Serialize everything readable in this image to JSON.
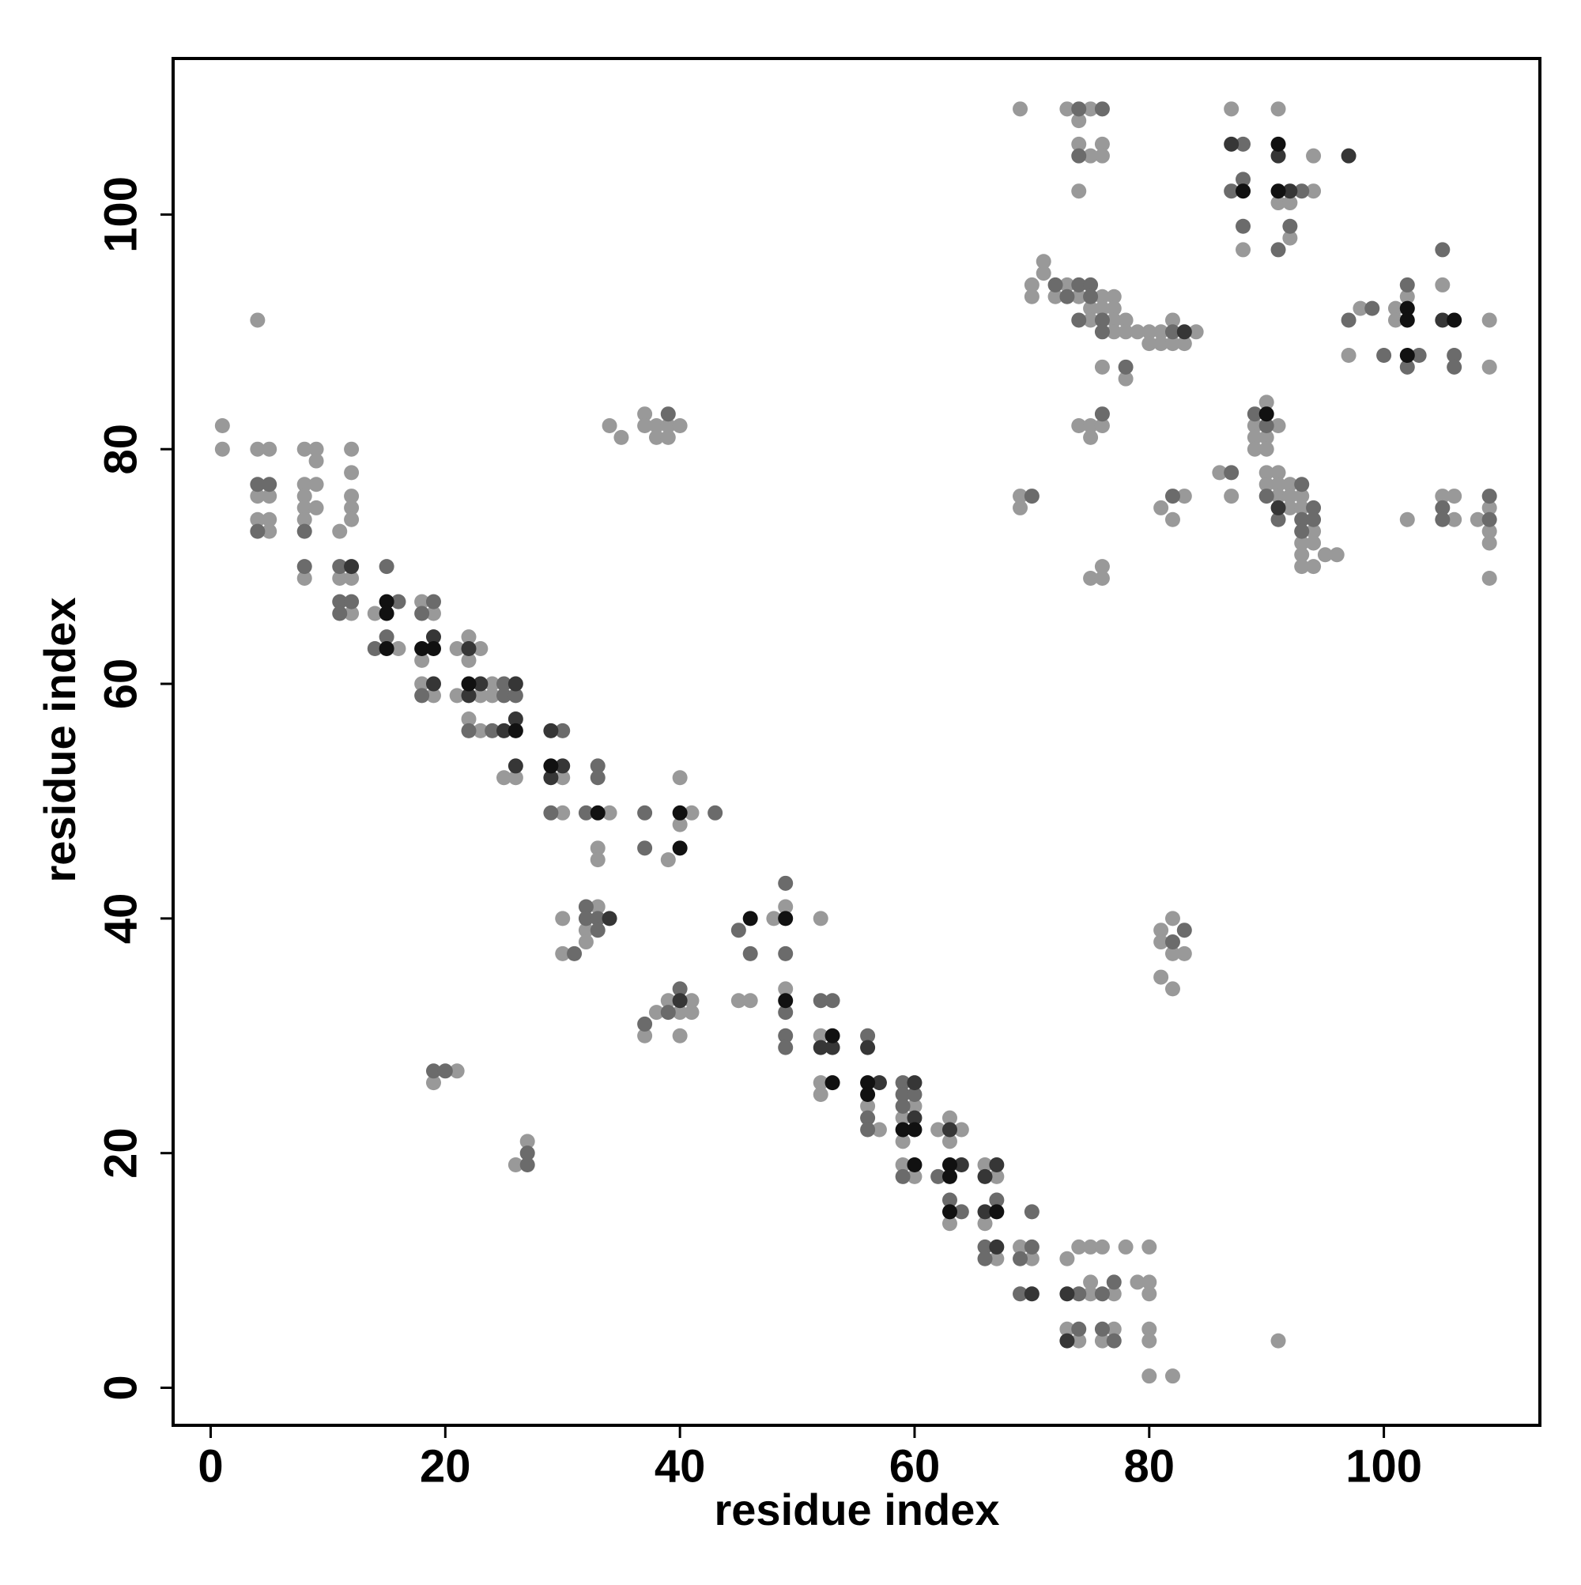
{
  "chart_data": {
    "type": "scatter",
    "xlabel": "residue index",
    "ylabel": "residue index",
    "xlim": [
      -3.2,
      113.3
    ],
    "ylim": [
      -3.2,
      113.3
    ],
    "xticks": [
      0,
      20,
      40,
      60,
      80,
      100
    ],
    "yticks": [
      0,
      20,
      40,
      60,
      80,
      100
    ],
    "grid": false,
    "series": [
      {
        "color": "#999999",
        "x": [
          1,
          1,
          4,
          4,
          5,
          4,
          5,
          4,
          5,
          5,
          8,
          8,
          8,
          8,
          8,
          8,
          9,
          9,
          9,
          9,
          11,
          11,
          12,
          12,
          12,
          12,
          12,
          12,
          12,
          14,
          16,
          18,
          19,
          18,
          18,
          19,
          21,
          23,
          22,
          22,
          21,
          23,
          24,
          24,
          22,
          23,
          25,
          26,
          30,
          30,
          34,
          33,
          33,
          39,
          40,
          40,
          41,
          30,
          30,
          33,
          32,
          32,
          34,
          35,
          37,
          37,
          38,
          38,
          39,
          39,
          40,
          21,
          19,
          26,
          27,
          37,
          38,
          39,
          40,
          41,
          41,
          40,
          45,
          46,
          48,
          49,
          49,
          52,
          52,
          52,
          52,
          56,
          57,
          60,
          59,
          59,
          59,
          60,
          62,
          63,
          64,
          63,
          63,
          66,
          67,
          66,
          67,
          69,
          70,
          73,
          74,
          75,
          76,
          75,
          75,
          77,
          73,
          74,
          77,
          76,
          78,
          80,
          79,
          80,
          80,
          80,
          80,
          80,
          82,
          91,
          81,
          82,
          81,
          82,
          83,
          81,
          82,
          69,
          73,
          75,
          74,
          74,
          76,
          75,
          76,
          74,
          87,
          91,
          94,
          94,
          91,
          92,
          92,
          88,
          70,
          71,
          71,
          73,
          70,
          72,
          74,
          76,
          77,
          75,
          76,
          77,
          75,
          77,
          78,
          77,
          78,
          79,
          80,
          81,
          84,
          80,
          81,
          82,
          83,
          82,
          76,
          78,
          98,
          101,
          101,
          102,
          105,
          97,
          109,
          109,
          74,
          75,
          75,
          76,
          69,
          69,
          83,
          81,
          82,
          86,
          87,
          90,
          89,
          91,
          89,
          90,
          89,
          90,
          90,
          91,
          90,
          91,
          92,
          91,
          92,
          93,
          92,
          93,
          94,
          93,
          94,
          93,
          95,
          96,
          93,
          94,
          75,
          76,
          76,
          102,
          105,
          106,
          106,
          108,
          109,
          109,
          109,
          109
        ],
        "values": [
          82,
          80,
          91,
          80,
          80,
          76,
          76,
          74,
          74,
          73,
          80,
          77,
          76,
          75,
          74,
          69,
          80,
          79,
          77,
          75,
          73,
          69,
          69,
          80,
          78,
          76,
          75,
          74,
          66,
          66,
          63,
          67,
          66,
          62,
          60,
          59,
          63,
          63,
          64,
          62,
          59,
          59,
          60,
          59,
          57,
          56,
          52,
          52,
          52,
          49,
          49,
          46,
          45,
          45,
          52,
          48,
          49,
          40,
          37,
          41,
          39,
          38,
          82,
          81,
          83,
          82,
          82,
          81,
          82,
          81,
          82,
          27,
          26,
          19,
          21,
          30,
          32,
          33,
          32,
          33,
          32,
          30,
          33,
          33,
          40,
          41,
          34,
          40,
          30,
          26,
          25,
          24,
          22,
          24,
          23,
          21,
          19,
          18,
          22,
          23,
          22,
          21,
          14,
          19,
          18,
          14,
          11,
          12,
          11,
          11,
          12,
          12,
          12,
          9,
          8,
          8,
          5,
          4,
          5,
          4,
          12,
          12,
          9,
          9,
          8,
          5,
          4,
          1,
          1,
          4,
          39,
          40,
          38,
          37,
          37,
          35,
          34,
          109,
          109,
          109,
          108,
          106,
          106,
          105,
          105,
          102,
          109,
          109,
          105,
          102,
          101,
          101,
          98,
          97,
          94,
          96,
          95,
          94,
          93,
          93,
          93,
          93,
          93,
          92,
          92,
          92,
          91,
          91,
          91,
          90,
          90,
          90,
          90,
          90,
          90,
          89,
          89,
          89,
          89,
          91,
          87,
          86,
          92,
          92,
          91,
          93,
          94,
          88,
          91,
          87,
          82,
          82,
          81,
          82,
          76,
          75,
          76,
          75,
          74,
          78,
          76,
          84,
          82,
          82,
          81,
          81,
          80,
          80,
          78,
          78,
          77,
          77,
          77,
          76,
          76,
          76,
          75,
          75,
          73,
          72,
          72,
          71,
          71,
          71,
          70,
          70,
          69,
          70,
          69,
          74,
          76,
          76,
          74,
          74,
          75,
          73,
          72,
          69
        ]
      },
      {
        "color": "#6b6b6b",
        "x": [
          4,
          5,
          4,
          8,
          8,
          11,
          11,
          12,
          11,
          15,
          16,
          15,
          14,
          19,
          18,
          18,
          25,
          25,
          26,
          22,
          24,
          30,
          29,
          32,
          33,
          33,
          37,
          37,
          43,
          31,
          32,
          32,
          33,
          33,
          39,
          19,
          20,
          27,
          27,
          37,
          39,
          40,
          45,
          46,
          49,
          49,
          49,
          49,
          49,
          52,
          53,
          56,
          56,
          56,
          59,
          59,
          60,
          59,
          59,
          62,
          63,
          64,
          67,
          66,
          66,
          70,
          69,
          70,
          69,
          74,
          76,
          77,
          74,
          76,
          77,
          83,
          82,
          74,
          76,
          74,
          88,
          88,
          87,
          93,
          88,
          92,
          91,
          72,
          74,
          75,
          73,
          75,
          74,
          76,
          76,
          82,
          78,
          97,
          99,
          102,
          105,
          100,
          103,
          102,
          106,
          106,
          76,
          70,
          82,
          87,
          89,
          90,
          93,
          90,
          94,
          91,
          93,
          94,
          93,
          105,
          105,
          109,
          109
        ],
        "values": [
          77,
          77,
          73,
          73,
          70,
          70,
          67,
          67,
          66,
          70,
          67,
          64,
          63,
          67,
          66,
          59,
          60,
          59,
          59,
          56,
          56,
          56,
          49,
          49,
          53,
          52,
          49,
          46,
          49,
          37,
          41,
          40,
          40,
          39,
          83,
          27,
          27,
          20,
          19,
          31,
          32,
          34,
          39,
          37,
          43,
          37,
          32,
          30,
          29,
          33,
          33,
          30,
          23,
          22,
          26,
          25,
          25,
          24,
          18,
          18,
          16,
          15,
          16,
          12,
          11,
          12,
          11,
          15,
          8,
          8,
          8,
          9,
          5,
          5,
          4,
          39,
          38,
          109,
          109,
          105,
          106,
          103,
          102,
          102,
          99,
          99,
          97,
          94,
          94,
          94,
          93,
          93,
          91,
          91,
          90,
          90,
          87,
          91,
          92,
          94,
          97,
          88,
          88,
          87,
          88,
          87,
          83,
          76,
          76,
          78,
          83,
          82,
          77,
          76,
          75,
          74,
          74,
          74,
          73,
          75,
          74,
          76,
          74
        ]
      },
      {
        "color": "#363636",
        "x": [
          12,
          19,
          19,
          22,
          23,
          22,
          26,
          25,
          26,
          26,
          29,
          30,
          29,
          34,
          40,
          52,
          53,
          56,
          57,
          60,
          60,
          63,
          64,
          67,
          66,
          66,
          67,
          70,
          73,
          73,
          87,
          91,
          97,
          92,
          83,
          105,
          91
        ],
        "values": [
          70,
          64,
          60,
          63,
          60,
          59,
          60,
          56,
          57,
          53,
          56,
          53,
          52,
          40,
          33,
          29,
          29,
          29,
          26,
          26,
          23,
          22,
          19,
          19,
          18,
          15,
          12,
          8,
          8,
          4,
          106,
          105,
          105,
          102,
          90,
          91,
          75
        ]
      },
      {
        "color": "#111111",
        "x": [
          15,
          15,
          15,
          18,
          19,
          22,
          26,
          29,
          33,
          40,
          40,
          46,
          49,
          49,
          53,
          53,
          56,
          56,
          59,
          60,
          60,
          63,
          63,
          63,
          67,
          91,
          88,
          91,
          102,
          102,
          106,
          102,
          90
        ],
        "values": [
          67,
          66,
          63,
          63,
          63,
          60,
          56,
          53,
          49,
          49,
          46,
          40,
          40,
          33,
          30,
          26,
          26,
          25,
          22,
          22,
          19,
          19,
          18,
          15,
          15,
          106,
          102,
          102,
          92,
          91,
          91,
          88,
          83
        ]
      }
    ]
  }
}
